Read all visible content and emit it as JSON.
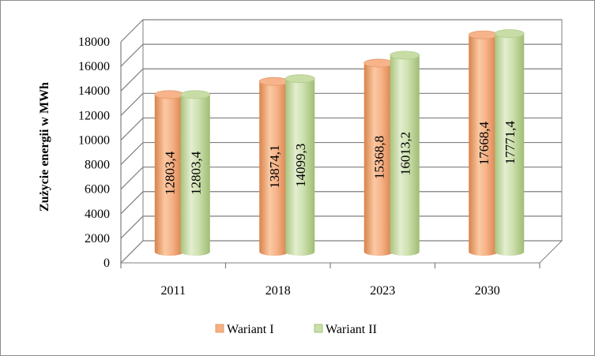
{
  "chart_data": {
    "type": "bar",
    "title": "",
    "xlabel": "",
    "ylabel": "Zużycie energii w MWh",
    "ylim": [
      0,
      18000
    ],
    "y_ticks": [
      0,
      2000,
      4000,
      6000,
      8000,
      10000,
      12000,
      14000,
      16000,
      18000
    ],
    "grid": true,
    "legend_position": "bottom",
    "categories": [
      "2011",
      "2018",
      "2023",
      "2030"
    ],
    "series": [
      {
        "name": "Wariant I",
        "color": "#f4b183",
        "values": [
          12803.4,
          13874.1,
          15368.8,
          17668.4
        ],
        "labels": [
          "12803,4",
          "13874,1",
          "15368,8",
          "17668,4"
        ]
      },
      {
        "name": "Wariant II",
        "color": "#c9dfa8",
        "values": [
          12803.4,
          14099.3,
          16013.2,
          17771.4
        ],
        "labels": [
          "12803,4",
          "14099,3",
          "16013,2",
          "17771,4"
        ]
      }
    ]
  }
}
